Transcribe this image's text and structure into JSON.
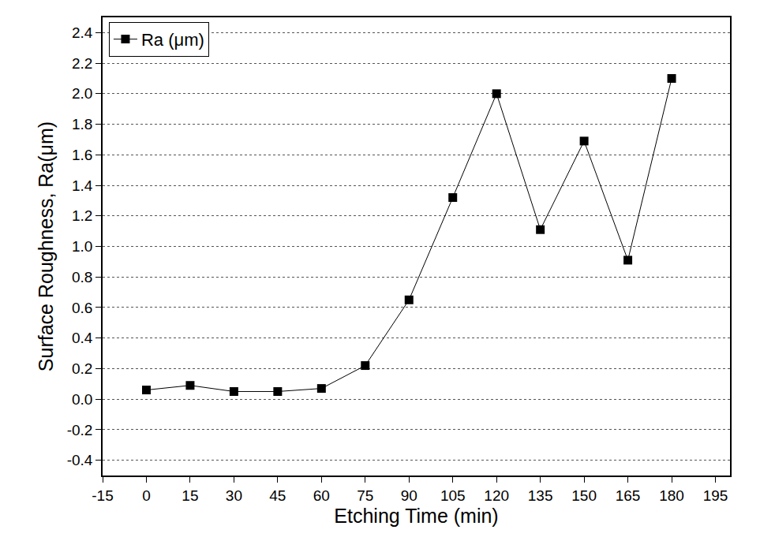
{
  "chart_data": {
    "type": "line",
    "x_label": "Etching Time (min)",
    "y_label": "Surface Roughness, Ra(μm)",
    "x": [
      0,
      15,
      30,
      45,
      60,
      75,
      90,
      105,
      120,
      135,
      150,
      165,
      180
    ],
    "series": [
      {
        "name": "Ra (μm)",
        "color": "#000000",
        "marker": "square",
        "line_style": "solid",
        "values": [
          0.06,
          0.09,
          0.05,
          0.05,
          0.07,
          0.22,
          0.65,
          1.32,
          2.0,
          1.11,
          1.69,
          0.91,
          2.1
        ]
      }
    ],
    "xlim": [
      -15,
      200
    ],
    "xticks": [
      -15,
      0,
      15,
      30,
      45,
      60,
      75,
      90,
      105,
      120,
      135,
      150,
      165,
      180,
      195
    ],
    "ylim": [
      -0.5,
      2.5
    ],
    "yticks": [
      {
        "value": -0.4,
        "label": "-0.4"
      },
      {
        "value": -0.2,
        "label": "-0.2"
      },
      {
        "value": 0,
        "label": "0.0"
      },
      {
        "value": 0.2,
        "label": "0.2"
      },
      {
        "value": 0.4,
        "label": "0.4"
      },
      {
        "value": 0.6,
        "label": "0.6"
      },
      {
        "value": 0.8,
        "label": "0.8"
      },
      {
        "value": 1,
        "label": "1.0"
      },
      {
        "value": 1.2,
        "label": "1.2"
      },
      {
        "value": 1.4,
        "label": "1.4"
      },
      {
        "value": 1.6,
        "label": "1.6"
      },
      {
        "value": 1.8,
        "label": "1.8"
      },
      {
        "value": 2,
        "label": "2.0"
      },
      {
        "value": 2.2,
        "label": "2.2"
      },
      {
        "value": 2.4,
        "label": "2.4"
      }
    ],
    "grid": true,
    "legend": "top left"
  }
}
